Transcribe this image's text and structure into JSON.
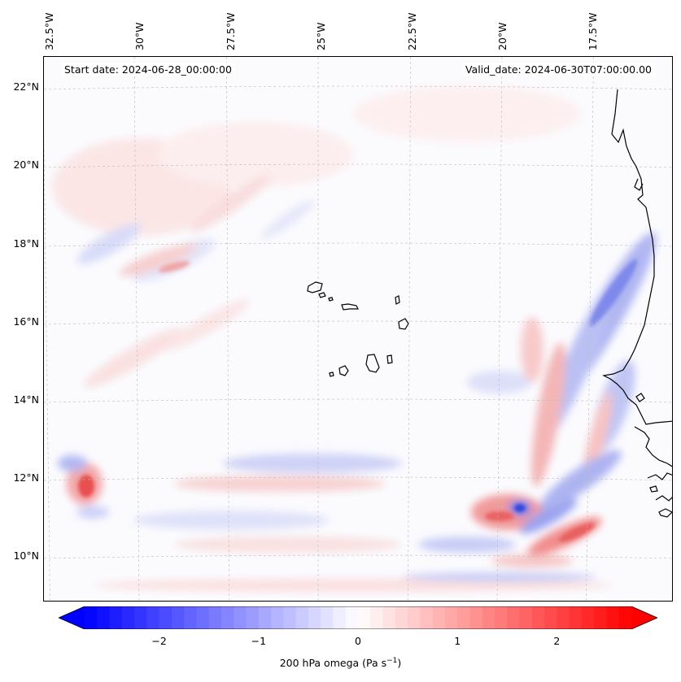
{
  "map": {
    "start_date": "Start date: 2024-06-28_00:00:00",
    "valid_date": "Valid_date: 2024-06-30T07:00:00.00",
    "lon_labels": [
      "32.5°W",
      "30°W",
      "27.5°W",
      "25°W",
      "22.5°W",
      "20°W",
      "17.5°W"
    ],
    "lat_labels": [
      "22°N",
      "20°N",
      "18°N",
      "16°N",
      "14°N",
      "12°N",
      "10°N"
    ],
    "coastline_color": "#000000",
    "gridline_color": "#bbbbbb"
  },
  "colorbar": {
    "ticks": [
      "−2",
      "−1",
      "0",
      "1",
      "2"
    ],
    "tick_values": [
      -2,
      -1,
      0,
      1,
      2
    ],
    "vmin": -2.75,
    "vmax": 2.75,
    "label": "200 hPa omega (Pa s",
    "label_superscript": "−1",
    "label_suffix": ")",
    "low_color": "#0000ff",
    "mid_color": "#ffffff",
    "high_color": "#ff0000"
  }
}
